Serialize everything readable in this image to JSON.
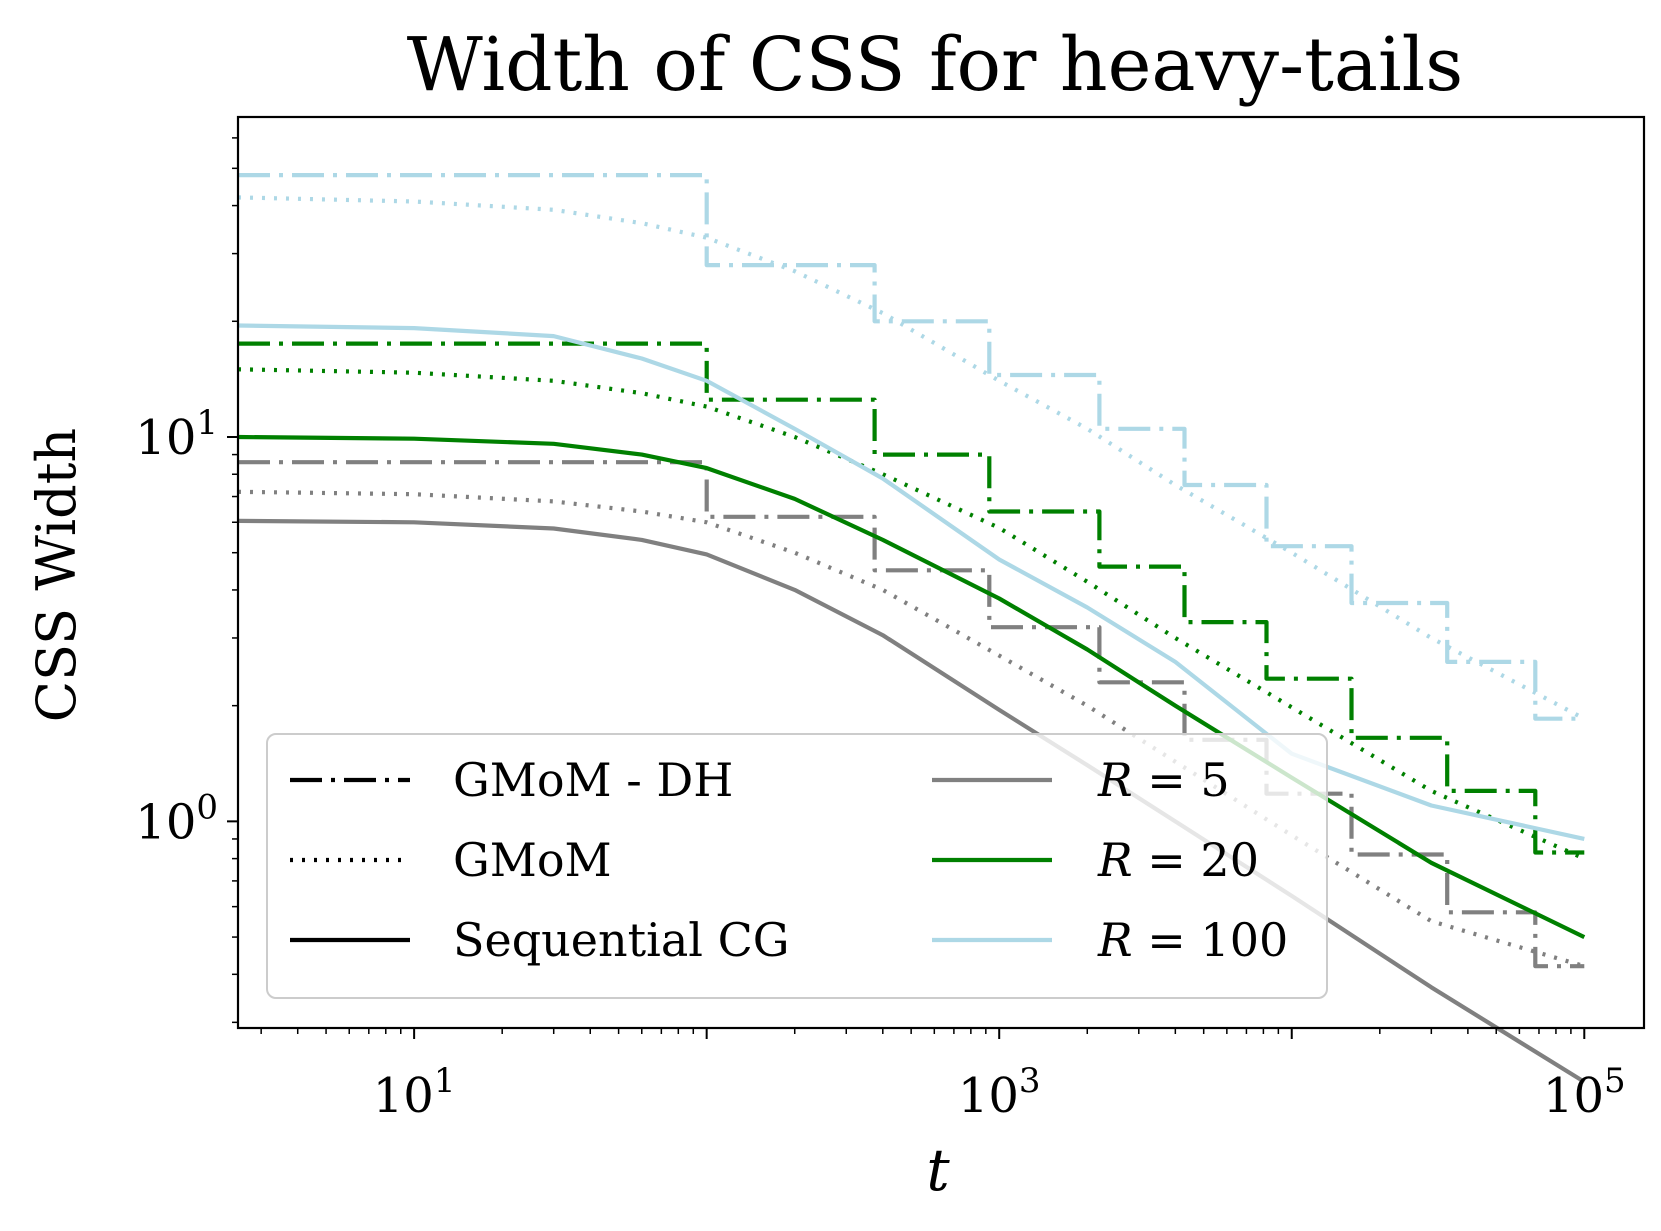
{
  "chart_data": {
    "type": "line",
    "title": "Width of CSS for heavy-tails",
    "xlabel": "t",
    "ylabel": "CSS Width",
    "xscale": "log",
    "yscale": "log",
    "xlim": [
      2.5,
      160000
    ],
    "ylim": [
      0.29,
      68
    ],
    "x_ticks": [
      {
        "value": 10,
        "base": "10",
        "exp": "1"
      },
      {
        "value": 1000,
        "base": "10",
        "exp": "3"
      },
      {
        "value": 100000,
        "base": "10",
        "exp": "5"
      }
    ],
    "y_ticks": [
      {
        "value": 1,
        "base": "10",
        "exp": "0"
      },
      {
        "value": 10,
        "base": "10",
        "exp": "1"
      }
    ],
    "grid": false,
    "legend_placement": "lower-left",
    "legend": {
      "styles": [
        {
          "label": "GMoM - DH",
          "dash": "dashdot"
        },
        {
          "label": "GMoM",
          "dash": "dotted"
        },
        {
          "label": "Sequential CG",
          "dash": "solid"
        }
      ],
      "colors": [
        {
          "var": "R",
          "eq": "=",
          "val": "5",
          "color": "#808080"
        },
        {
          "var": "R",
          "eq": "=",
          "val": "20",
          "color": "#008000"
        },
        {
          "var": "R",
          "eq": "=",
          "val": "100",
          "color": "#add8e6"
        }
      ]
    },
    "series": [
      {
        "R": 5,
        "method": "Sequential CG",
        "style": "solid",
        "color": "#808080",
        "x": [
          2.5,
          10,
          30,
          60,
          100,
          200,
          400,
          1000,
          2000,
          4000,
          10000,
          30000,
          100000
        ],
        "y": [
          6.05,
          6.0,
          5.78,
          5.4,
          4.95,
          4.0,
          3.05,
          1.95,
          1.4,
          1.0,
          0.64,
          0.37,
          0.21
        ]
      },
      {
        "R": 5,
        "method": "GMoM",
        "style": "dotted",
        "color": "#808080",
        "x": [
          2.5,
          10,
          30,
          60,
          100,
          200,
          400,
          1000,
          2000,
          4000,
          10000,
          30000,
          100000
        ],
        "y": [
          7.2,
          7.1,
          6.8,
          6.4,
          6.0,
          5.0,
          4.0,
          2.7,
          2.0,
          1.43,
          0.92,
          0.55,
          0.42
        ]
      },
      {
        "R": 5,
        "method": "GMoM - DH",
        "style": "dashdot",
        "color": "#808080",
        "x_steps": [
          2.5,
          100,
          375,
          925,
          2200,
          4300,
          8200,
          16000,
          34000,
          68000
        ],
        "x_end": 100000,
        "y": [
          8.6,
          6.2,
          4.5,
          3.2,
          2.3,
          1.63,
          1.18,
          0.82,
          0.58,
          0.42
        ]
      },
      {
        "R": 20,
        "method": "Sequential CG",
        "style": "solid",
        "color": "#008000",
        "x": [
          2.5,
          10,
          30,
          60,
          100,
          200,
          400,
          1000,
          2000,
          4000,
          10000,
          30000,
          100000
        ],
        "y": [
          10.0,
          9.9,
          9.6,
          9.0,
          8.3,
          6.9,
          5.4,
          3.8,
          2.8,
          2.0,
          1.3,
          0.78,
          0.5
        ]
      },
      {
        "R": 20,
        "method": "GMoM",
        "style": "dotted",
        "color": "#008000",
        "x": [
          2.5,
          10,
          30,
          60,
          100,
          200,
          400,
          1000,
          2000,
          4000,
          10000,
          30000,
          100000
        ],
        "y": [
          15.0,
          14.7,
          14.0,
          13.0,
          12.0,
          10.0,
          8.0,
          5.8,
          4.2,
          3.0,
          1.98,
          1.2,
          0.8
        ]
      },
      {
        "R": 20,
        "method": "GMoM - DH",
        "style": "dashdot",
        "color": "#008000",
        "x_steps": [
          2.5,
          100,
          375,
          925,
          2200,
          4300,
          8200,
          16000,
          34000,
          68000
        ],
        "x_end": 100000,
        "y": [
          17.5,
          12.5,
          9.0,
          6.4,
          4.6,
          3.3,
          2.35,
          1.65,
          1.2,
          0.83
        ]
      },
      {
        "R": 100,
        "method": "Sequential CG",
        "style": "solid",
        "color": "#add8e6",
        "x": [
          2.5,
          10,
          30,
          60,
          100,
          200,
          400,
          1000,
          2000,
          4000,
          10000,
          30000,
          100000
        ],
        "y": [
          19.5,
          19.2,
          18.3,
          16.0,
          14.0,
          10.5,
          7.8,
          4.8,
          3.6,
          2.6,
          1.5,
          1.1,
          0.9
        ]
      },
      {
        "R": 100,
        "method": "GMoM",
        "style": "dotted",
        "color": "#add8e6",
        "x": [
          2.5,
          10,
          30,
          60,
          100,
          200,
          400,
          1000,
          2000,
          4000,
          10000,
          30000,
          100000
        ],
        "y": [
          42.0,
          41.0,
          39.0,
          36.0,
          33.0,
          27.0,
          21.0,
          14.0,
          10.5,
          7.5,
          5.0,
          3.0,
          1.85
        ]
      },
      {
        "R": 100,
        "method": "GMoM - DH",
        "style": "dashdot",
        "color": "#add8e6",
        "x_steps": [
          2.5,
          100,
          375,
          925,
          2200,
          4300,
          8200,
          16000,
          34000,
          68000
        ],
        "x_end": 100000,
        "y": [
          48.0,
          28.0,
          20.0,
          14.5,
          10.5,
          7.5,
          5.2,
          3.7,
          2.6,
          1.85
        ]
      }
    ]
  }
}
